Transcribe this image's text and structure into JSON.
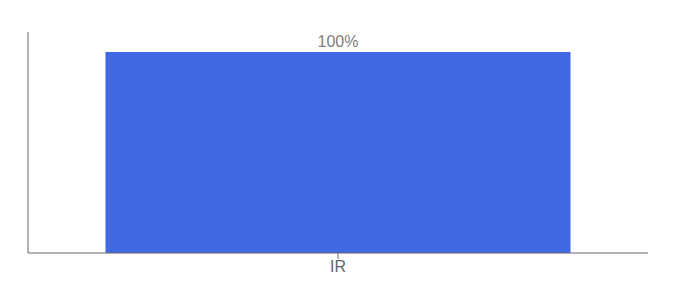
{
  "chart_data": {
    "type": "bar",
    "categories": [
      "IR"
    ],
    "values": [
      100
    ],
    "value_labels": [
      "100%"
    ],
    "data_labels": true,
    "color": "#4169e1",
    "ylim": [
      0,
      110
    ],
    "yticks": [],
    "tick_labels": "x",
    "grid": false
  }
}
